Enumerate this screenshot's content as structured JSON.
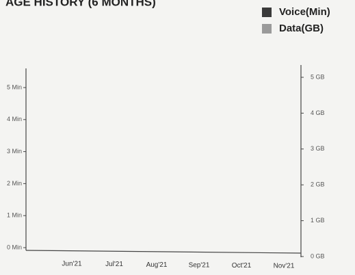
{
  "chart_data": {
    "type": "bar",
    "title": "AGE HISTORY (6 MONTHS)",
    "categories": [
      "Jun'21",
      "Jul'21",
      "Aug'21",
      "Sep'21",
      "Oct'21",
      "Nov'21"
    ],
    "series": [
      {
        "name": "Voice(Min)",
        "color": "#3a3a3a",
        "values": [
          null,
          null,
          null,
          null,
          null,
          null
        ]
      },
      {
        "name": "Data(GB)",
        "color": "#9a9a9a",
        "axis": "y2",
        "values": [
          null,
          null,
          null,
          null,
          null,
          null
        ]
      }
    ],
    "ylim": [
      0,
      5
    ],
    "yticks": [
      {
        "value": 0,
        "label": "0 Min"
      },
      {
        "value": 1,
        "label": "1 Min"
      },
      {
        "value": 2,
        "label": "2 Min"
      },
      {
        "value": 3,
        "label": "3 Min"
      },
      {
        "value": 4,
        "label": "4 Min"
      },
      {
        "value": 5,
        "label": "5 Min"
      }
    ],
    "y2lim": [
      0,
      5
    ],
    "y2ticks": [
      {
        "value": 0,
        "label": "0 GB"
      },
      {
        "value": 1,
        "label": "1 GB"
      },
      {
        "value": 2,
        "label": "2 GB"
      },
      {
        "value": 3,
        "label": "3 GB"
      },
      {
        "value": 4,
        "label": "4 GB"
      },
      {
        "value": 5,
        "label": "5 GB"
      }
    ],
    "legend": "top-right"
  }
}
